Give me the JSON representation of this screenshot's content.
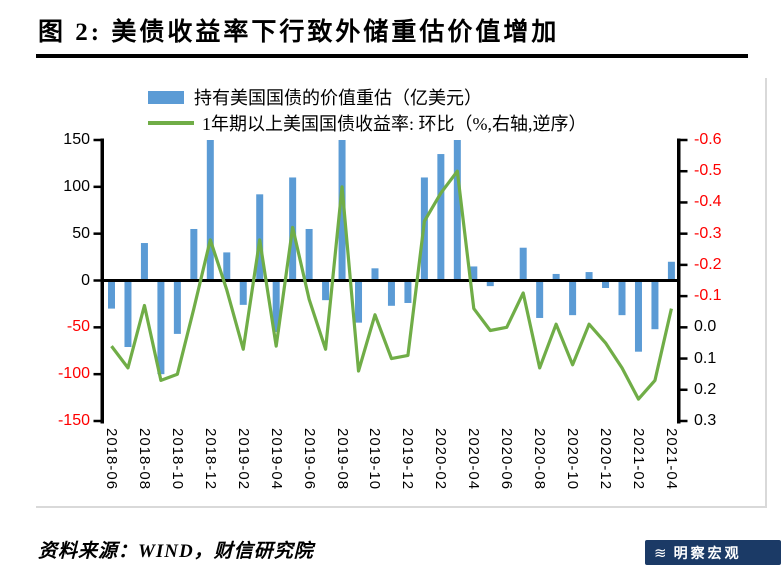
{
  "title": "图 2:  美债收益率下行致外储重估价值增加",
  "legend": {
    "items": [
      {
        "label": "持有美国国债的价值重估（亿美元）",
        "type": "bar",
        "color": "#5B9BD5"
      },
      {
        "label": "1年期以上美国国债收益率: 环比（%,右轴,逆序）",
        "type": "line",
        "color": "#70AD47"
      }
    ]
  },
  "footer": {
    "source": "资料来源：WIND，财信研究院",
    "watermark": "明察宏观"
  },
  "colors": {
    "bar": "#5B9BD5",
    "line": "#70AD47",
    "axis": "#000000",
    "negative_tick": "#FF0000",
    "border_gray": "#D9D9D9",
    "badge_bg": "#1B3A66"
  },
  "chart_data": {
    "type": "bar",
    "subtype": "dual-axis bar + line, right axis inverted",
    "title": "图 2:  美债收益率下行致外储重估价值增加",
    "xlabel": "",
    "ylabel_left": "亿美元",
    "ylabel_right": "%",
    "grid": false,
    "legend_position": "top",
    "categories": [
      "2018-06",
      "2018-07",
      "2018-08",
      "2018-09",
      "2018-10",
      "2018-11",
      "2018-12",
      "2019-01",
      "2019-02",
      "2019-03",
      "2019-04",
      "2019-05",
      "2019-06",
      "2019-07",
      "2019-08",
      "2019-09",
      "2019-10",
      "2019-11",
      "2019-12",
      "2020-01",
      "2020-02",
      "2020-03",
      "2020-04",
      "2020-05",
      "2020-06",
      "2020-07",
      "2020-08",
      "2020-09",
      "2020-10",
      "2020-11",
      "2020-12",
      "2021-01",
      "2021-02",
      "2021-03",
      "2021-04"
    ],
    "x_tick_labels": [
      "2018-06",
      "2018-08",
      "2018-10",
      "2018-12",
      "2019-02",
      "2019-04",
      "2019-06",
      "2019-08",
      "2019-10",
      "2019-12",
      "2020-02",
      "2020-04",
      "2020-06",
      "2020-08",
      "2020-10",
      "2020-12",
      "2021-02",
      "2021-04"
    ],
    "series": [
      {
        "name": "持有美国国债的价值重估（亿美元）",
        "type": "bar",
        "axis": "left",
        "color": "#5B9BD5",
        "values": [
          -30,
          -71,
          40,
          -100,
          -57,
          55,
          150,
          30,
          -26,
          92,
          -55,
          110,
          55,
          -21,
          150,
          -45,
          13,
          -27,
          -24,
          110,
          135,
          150,
          15,
          -6,
          0,
          35,
          -40,
          7,
          -37,
          9,
          -8,
          -37,
          -76,
          -52,
          20
        ]
      },
      {
        "name": "1年期以上美国国债收益率: 环比（%,右轴,逆序）",
        "type": "line",
        "axis": "right",
        "color": "#70AD47",
        "values": [
          0.06,
          0.13,
          -0.07,
          0.17,
          0.15,
          -0.06,
          -0.28,
          -0.12,
          0.07,
          -0.28,
          0.06,
          -0.32,
          -0.09,
          0.07,
          -0.45,
          0.14,
          -0.04,
          0.1,
          0.09,
          -0.34,
          -0.43,
          -0.5,
          -0.06,
          0.01,
          0.0,
          -0.11,
          0.13,
          -0.01,
          0.12,
          -0.01,
          0.05,
          0.13,
          0.23,
          0.17,
          -0.06
        ]
      }
    ],
    "left_axis": {
      "range": [
        -150,
        150
      ],
      "tick_labels": [
        "150",
        "100",
        "50",
        "0",
        "-50",
        "-100",
        "-150"
      ],
      "positive_color": "#000000",
      "negative_color": "#FF0000"
    },
    "right_axis": {
      "range": [
        -0.6,
        0.3
      ],
      "inverted": true,
      "tick_labels": [
        "-0.6",
        "-0.5",
        "-0.4",
        "-0.3",
        "-0.2",
        "-0.1",
        "0.0",
        "0.1",
        "0.2",
        "0.3"
      ],
      "positive_color": "#000000",
      "negative_color": "#FF0000"
    }
  }
}
